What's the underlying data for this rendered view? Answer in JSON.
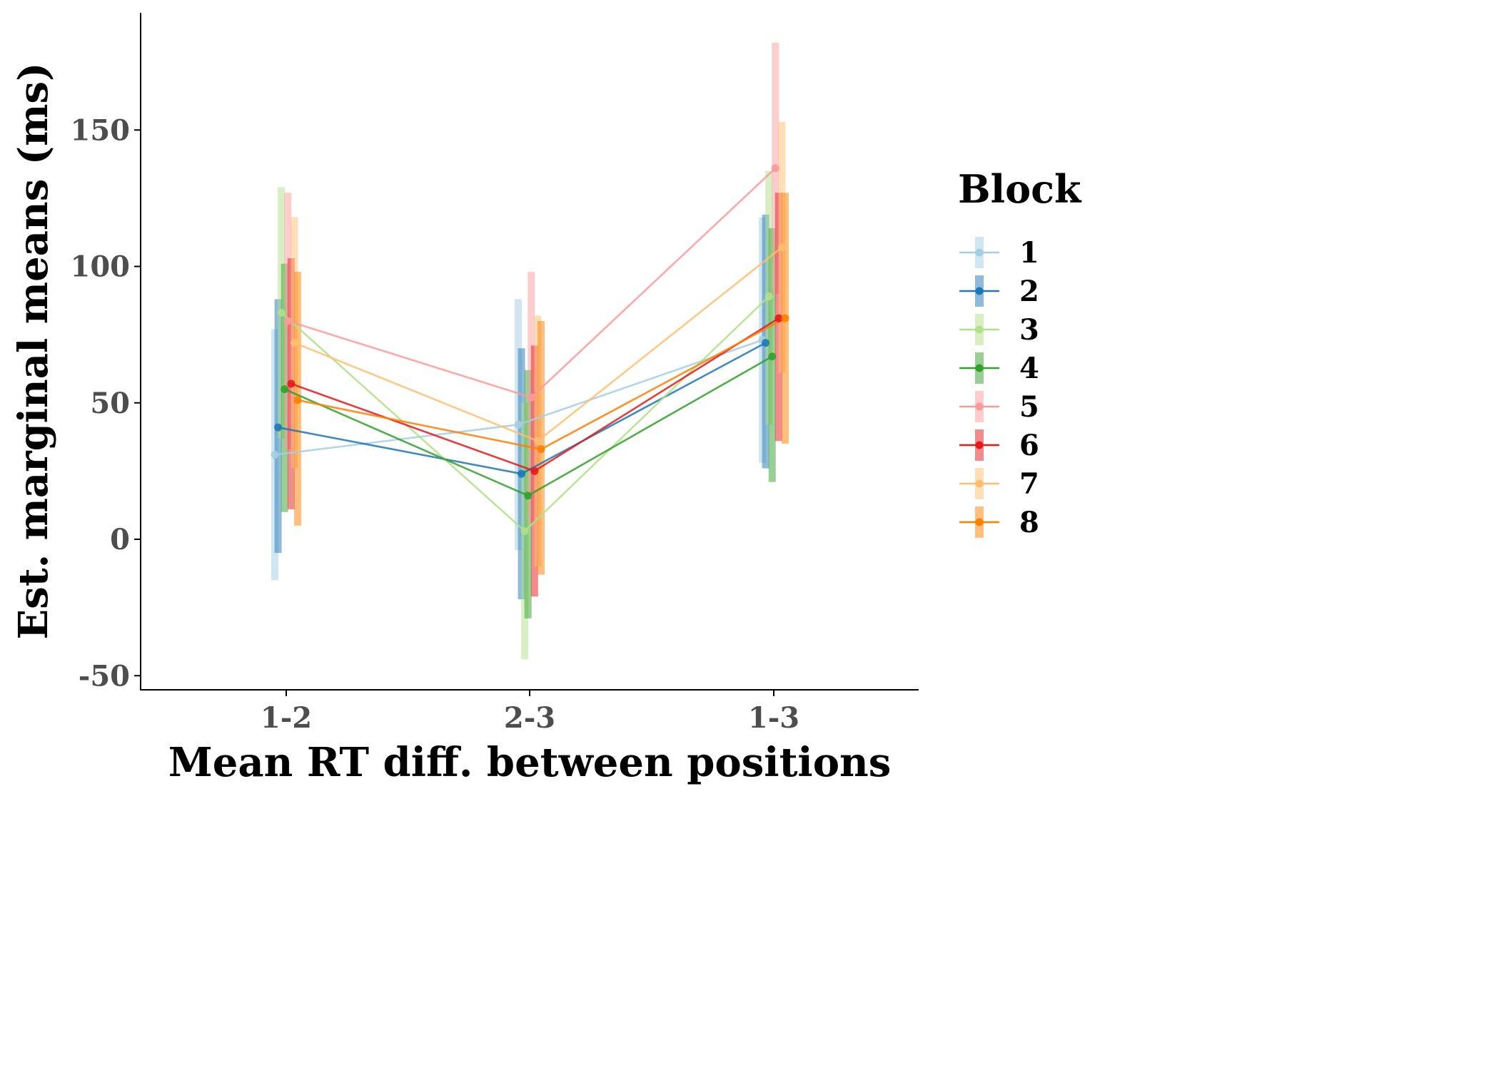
{
  "chart_data": {
    "type": "line",
    "xlabel": "Mean RT diff. between positions",
    "ylabel": "Est. marginal means (ms)",
    "categories": [
      "1-2",
      "2-3",
      "1-3"
    ],
    "ylim": [
      -54,
      195
    ],
    "yticks": [
      -50,
      0,
      50,
      100,
      150
    ],
    "ytick_labels": [
      "-50",
      "0",
      "50",
      "100",
      "150"
    ],
    "grid": false,
    "error_bars": "confidence interval",
    "legend": {
      "title": "Block",
      "position": "right"
    },
    "series": [
      {
        "name": "1",
        "color": "#a6cee3",
        "values": [
          31,
          42,
          73
        ],
        "lower": [
          -15,
          -4,
          28
        ],
        "upper": [
          77,
          88,
          118
        ]
      },
      {
        "name": "2",
        "color": "#1f78b4",
        "values": [
          41,
          24,
          72
        ],
        "lower": [
          -5,
          -22,
          26
        ],
        "upper": [
          88,
          70,
          119
        ]
      },
      {
        "name": "3",
        "color": "#b2df8a",
        "values": [
          83,
          3,
          89
        ],
        "lower": [
          37,
          -44,
          42
        ],
        "upper": [
          129,
          50,
          135
        ]
      },
      {
        "name": "4",
        "color": "#33a02c",
        "values": [
          55,
          16,
          67
        ],
        "lower": [
          10,
          -29,
          21
        ],
        "upper": [
          101,
          62,
          114
        ]
      },
      {
        "name": "5",
        "color": "#fb9a99",
        "values": [
          80,
          52,
          136
        ],
        "lower": [
          33,
          6,
          90
        ],
        "upper": [
          127,
          98,
          182
        ]
      },
      {
        "name": "6",
        "color": "#e31a1c",
        "values": [
          57,
          25,
          81
        ],
        "lower": [
          11,
          -21,
          36
        ],
        "upper": [
          103,
          71,
          127
        ]
      },
      {
        "name": "7",
        "color": "#fdbf6f",
        "values": [
          72,
          36,
          107
        ],
        "lower": [
          26,
          -10,
          61
        ],
        "upper": [
          118,
          82,
          153
        ]
      },
      {
        "name": "8",
        "color": "#ff7f00",
        "values": [
          51,
          33,
          81
        ],
        "lower": [
          5,
          -13,
          35
        ],
        "upper": [
          98,
          80,
          127
        ]
      }
    ]
  }
}
